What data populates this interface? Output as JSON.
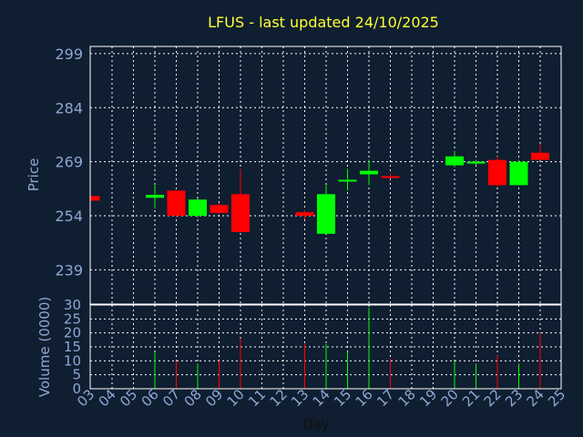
{
  "chart_data": {
    "type": "candlestick",
    "title": "LFUS - last updated 24/10/2025",
    "xlabel": "Day",
    "price_ylabel": "Price",
    "volume_ylabel": "Volume (0000)",
    "x_ticks": [
      "03",
      "04",
      "05",
      "06",
      "07",
      "08",
      "09",
      "10",
      "11",
      "12",
      "13",
      "14",
      "15",
      "16",
      "17",
      "18",
      "19",
      "20",
      "21",
      "22",
      "23",
      "24",
      "25"
    ],
    "price_ticks": [
      239,
      254,
      269,
      284,
      299
    ],
    "price_ylim": [
      229.5,
      301
    ],
    "volume_ticks": [
      0,
      5,
      10,
      15,
      20,
      25,
      30
    ],
    "volume_ylim": [
      0,
      30
    ],
    "colors": {
      "up": "#00ff00",
      "down": "#ff0000",
      "background": "#0f1e30",
      "grid": "#ffffff"
    },
    "candles": [
      {
        "day": "03",
        "open": 259.5,
        "high": 259.8,
        "low": 258.0,
        "close": 258.2,
        "volume": 0
      },
      {
        "day": "06",
        "open": 259.0,
        "high": 262.5,
        "low": 256.0,
        "close": 259.8,
        "volume": 13
      },
      {
        "day": "07",
        "open": 261.0,
        "high": 261.0,
        "low": 253.5,
        "close": 254.0,
        "volume": 10
      },
      {
        "day": "08",
        "open": 254.0,
        "high": 258.8,
        "low": 253.5,
        "close": 258.5,
        "volume": 9
      },
      {
        "day": "09",
        "open": 257.0,
        "high": 257.5,
        "low": 254.5,
        "close": 254.8,
        "volume": 10
      },
      {
        "day": "10",
        "open": 260.0,
        "high": 267.0,
        "low": 249.5,
        "close": 249.5,
        "volume": 18
      },
      {
        "day": "13",
        "open": 255.0,
        "high": 255.5,
        "low": 253.0,
        "close": 254.0,
        "volume": 16
      },
      {
        "day": "14",
        "open": 249.0,
        "high": 262.5,
        "low": 249.0,
        "close": 260.0,
        "volume": 16
      },
      {
        "day": "15",
        "open": 263.5,
        "high": 267.0,
        "low": 261.0,
        "close": 264.0,
        "volume": 13
      },
      {
        "day": "16",
        "open": 265.5,
        "high": 269.5,
        "low": 262.5,
        "close": 266.5,
        "volume": 29
      },
      {
        "day": "17",
        "open": 265.0,
        "high": 266.0,
        "low": 264.5,
        "close": 264.5,
        "volume": 11
      },
      {
        "day": "20",
        "open": 268.0,
        "high": 272.0,
        "low": 267.5,
        "close": 270.5,
        "volume": 10
      },
      {
        "day": "21",
        "open": 268.5,
        "high": 269.5,
        "low": 268.0,
        "close": 269.0,
        "volume": 9
      },
      {
        "day": "22",
        "open": 269.5,
        "high": 270.5,
        "low": 262.0,
        "close": 262.5,
        "volume": 12
      },
      {
        "day": "23",
        "open": 262.5,
        "high": 269.5,
        "low": 262.5,
        "close": 269.0,
        "volume": 9
      },
      {
        "day": "24",
        "open": 271.5,
        "high": 274.0,
        "low": 269.5,
        "close": 269.5,
        "volume": 20
      }
    ]
  }
}
